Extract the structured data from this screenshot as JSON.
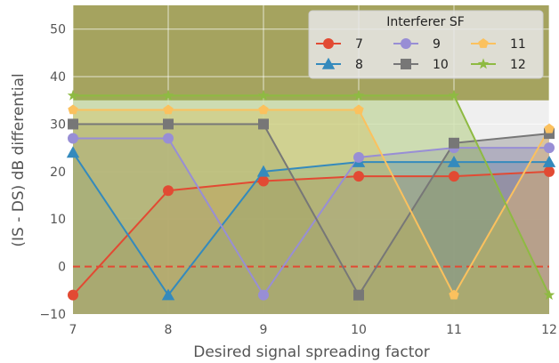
{
  "chart_data": {
    "type": "line",
    "title": "",
    "xlabel": "Desired signal spreading factor",
    "ylabel": "(IS - DS) dB differential",
    "x": [
      7,
      8,
      9,
      10,
      11,
      12
    ],
    "xlim": [
      7,
      12
    ],
    "ylim": [
      -10,
      55
    ],
    "xticks": [
      "7",
      "8",
      "9",
      "10",
      "11",
      "12"
    ],
    "yticks": [
      "−10",
      "0",
      "10",
      "20",
      "30",
      "40",
      "50"
    ],
    "grid": true,
    "legend_title": "Interferer SF",
    "legend_position": "top-right",
    "reference_line": {
      "y": 0,
      "style": "dashed",
      "color": "#E24A33"
    },
    "background_bands": [
      {
        "from": -10,
        "to": 10,
        "color": "#e5e5e5"
      },
      {
        "from": 35,
        "to": 55,
        "color": "#a5a35f"
      }
    ],
    "series": [
      {
        "name": "7",
        "color": "#E24A33",
        "marker": "circle",
        "values": [
          -6,
          16,
          18,
          19,
          19,
          20
        ]
      },
      {
        "name": "8",
        "color": "#348ABD",
        "marker": "triangle",
        "values": [
          24,
          -6,
          20,
          22,
          22,
          22
        ]
      },
      {
        "name": "9",
        "color": "#988ED5",
        "marker": "circle",
        "values": [
          27,
          27,
          -6,
          23,
          25,
          25
        ]
      },
      {
        "name": "10",
        "color": "#777777",
        "marker": "square",
        "values": [
          30,
          30,
          30,
          -6,
          26,
          28
        ]
      },
      {
        "name": "11",
        "color": "#FBC15E",
        "marker": "pentagon",
        "values": [
          33,
          33,
          33,
          33,
          -6,
          29
        ]
      },
      {
        "name": "12",
        "color": "#8EBA42",
        "marker": "star",
        "values": [
          36,
          36,
          36,
          36,
          36,
          -6
        ]
      }
    ]
  }
}
